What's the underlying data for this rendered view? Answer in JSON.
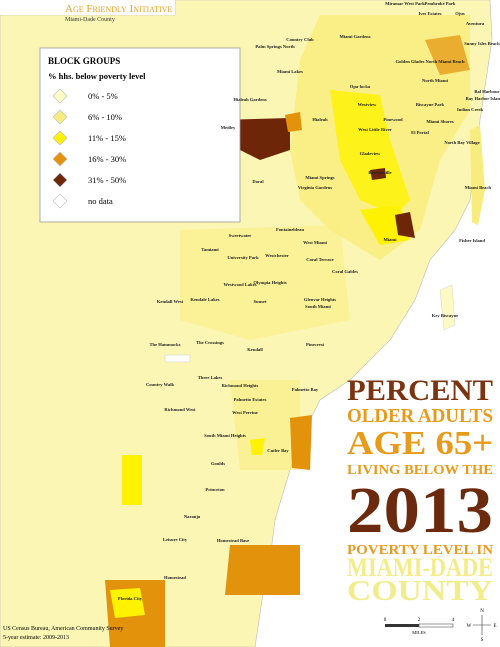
{
  "header": {
    "title": "Age Friendly Initiative",
    "subtitle": "Miami-Dade County"
  },
  "legend": {
    "title": "BLOCK GROUPS",
    "subtitle": "% hhs. below poverty level",
    "items": [
      {
        "label": "0% - 5%",
        "color": "#fdfac4"
      },
      {
        "label": "6% - 10%",
        "color": "#f9ec7e"
      },
      {
        "label": "11% - 15%",
        "color": "#fff200"
      },
      {
        "label": "16% - 30%",
        "color": "#e3920c"
      },
      {
        "label": "31% - 50%",
        "color": "#6e2608"
      },
      {
        "label": "no data",
        "color": "#ffffff"
      }
    ]
  },
  "headline": {
    "lines": [
      {
        "text": "PERCENT",
        "color": "#7a3412"
      },
      {
        "text": "OLDER ADULTS",
        "color": "#e89a1a"
      },
      {
        "text": "AGE 65+",
        "color": "#e89a1a"
      },
      {
        "text": "LIVING BELOW THE",
        "color": "#e89a1a"
      },
      {
        "text": "2013",
        "color": "#6b2a0e"
      },
      {
        "text": "POVERTY LEVEL IN",
        "color": "#e89a1a"
      },
      {
        "text": "MIAMI-DADE",
        "color": "#f3ec8a"
      },
      {
        "text": "COUNTY",
        "color": "#f3ec8a"
      }
    ]
  },
  "source": [
    "US Census Bureau, American Community Survey",
    "5-year estimate: 2009-2013"
  ],
  "scale": {
    "ticks": [
      "0",
      "2",
      "4"
    ],
    "unit": "MILES"
  },
  "compass": {
    "n": "N",
    "e": "E",
    "s": "S",
    "w": "W"
  },
  "places": [
    "Miramar West Park",
    "Pembroke Park",
    "Ives Estates",
    "Ojus",
    "Aventura",
    "Country Club",
    "Miami Gardens",
    "Palm Springs North",
    "Sunny Isles Beach",
    "Miami Lakes",
    "Golden Glades",
    "North Miami Beach",
    "North Miami",
    "Opa-locka",
    "Bal Harbour",
    "Bay Harbor Islands",
    "Hialeah Gardens",
    "Westview",
    "Biscayne Park",
    "Indian Creek",
    "Medley",
    "Hialeah",
    "Pinewood",
    "Miami Shores",
    "West Little River",
    "El Portal",
    "North Bay Village",
    "Gladeview",
    "Brownsville",
    "Doral",
    "Miami Springs",
    "Virginia Gardens",
    "Miami Beach",
    "Fisher Island",
    "Fontainebleau",
    "Sweetwater",
    "West Miami",
    "Miami",
    "Tamiami",
    "University Park",
    "Westchester",
    "Coral Terrace",
    "Coral Gables",
    "Olympia Heights",
    "Westwood Lakes",
    "Kendall West",
    "Kendale Lakes",
    "Sunset",
    "Glenvar Heights",
    "South Miami",
    "Key Biscayne",
    "The Hammocks",
    "The Crossings",
    "Kendall",
    "Pinecrest",
    "Three Lakes",
    "Country Walk",
    "Richmond Heights",
    "Palmetto Bay",
    "Palmetto Estates",
    "Richmond West",
    "West Perrine",
    "South Miami Heights",
    "Cutler Bay",
    "Goulds",
    "Princeton",
    "Naranja",
    "Leisure City",
    "Homestead Base",
    "Homestead",
    "Florida City"
  ]
}
